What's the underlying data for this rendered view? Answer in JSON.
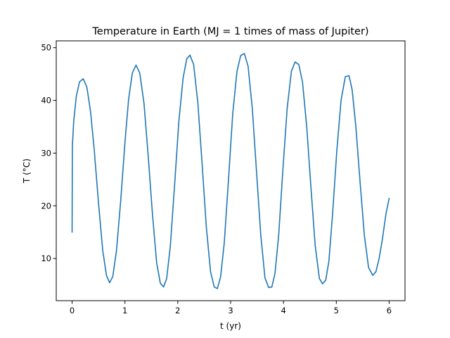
{
  "chart_data": {
    "type": "line",
    "title": "Temperature in Earth (MJ = 1 times of mass of Jupiter)",
    "xlabel": "t (yr)",
    "ylabel": "T (°C)",
    "xlim": [
      -0.3,
      6.3
    ],
    "ylim": [
      2.0,
      51.3
    ],
    "xticks": [
      0,
      1,
      2,
      3,
      4,
      5,
      6
    ],
    "yticks": [
      10,
      20,
      30,
      40,
      50
    ],
    "grid": false,
    "legend": "none",
    "series": [
      {
        "color": "#1f77b4",
        "x": [
          0,
          0.005,
          0.03,
          0.08,
          0.14,
          0.21,
          0.28,
          0.35,
          0.42,
          0.5,
          0.58,
          0.65,
          0.71,
          0.77,
          0.84,
          0.92,
          1.0,
          1.07,
          1.14,
          1.21,
          1.28,
          1.36,
          1.44,
          1.52,
          1.6,
          1.67,
          1.73,
          1.79,
          1.86,
          1.94,
          2.02,
          2.1,
          2.17,
          2.23,
          2.3,
          2.38,
          2.46,
          2.54,
          2.62,
          2.69,
          2.75,
          2.81,
          2.88,
          2.96,
          3.04,
          3.12,
          3.19,
          3.26,
          3.33,
          3.41,
          3.49,
          3.57,
          3.65,
          3.72,
          3.78,
          3.84,
          3.91,
          3.99,
          4.07,
          4.15,
          4.22,
          4.29,
          4.36,
          4.44,
          4.52,
          4.6,
          4.68,
          4.74,
          4.8,
          4.86,
          4.93,
          5.01,
          5.09,
          5.17,
          5.24,
          5.3,
          5.37,
          5.45,
          5.53,
          5.61,
          5.69,
          5.75,
          5.81,
          5.87,
          5.94,
          6.0
        ],
        "y": [
          15,
          31.3,
          36,
          40.8,
          43.5,
          44.1,
          42.5,
          37.8,
          30.5,
          20.5,
          11.5,
          6.8,
          5.4,
          6.6,
          11.5,
          21,
          32,
          40.3,
          45.2,
          46.7,
          45.2,
          39.5,
          29.5,
          18.5,
          9.2,
          5.3,
          4.6,
          6.2,
          12.5,
          24,
          36,
          44.2,
          47.9,
          48.6,
          46.8,
          39.5,
          28,
          16,
          7.5,
          4.6,
          4.3,
          6.5,
          13,
          25,
          37.5,
          45.5,
          48.5,
          48.9,
          46.5,
          38.5,
          26.5,
          14.5,
          6.3,
          4.5,
          4.6,
          7.2,
          14.5,
          27,
          38.5,
          45.5,
          47.3,
          46.8,
          43.5,
          35,
          23.5,
          12.5,
          6.2,
          5.2,
          5.9,
          9.5,
          18.5,
          30.5,
          40,
          44.5,
          44.7,
          42,
          35,
          24.5,
          14.5,
          8.3,
          6.8,
          7.5,
          10,
          13.5,
          18.5,
          21.4
        ]
      }
    ]
  }
}
